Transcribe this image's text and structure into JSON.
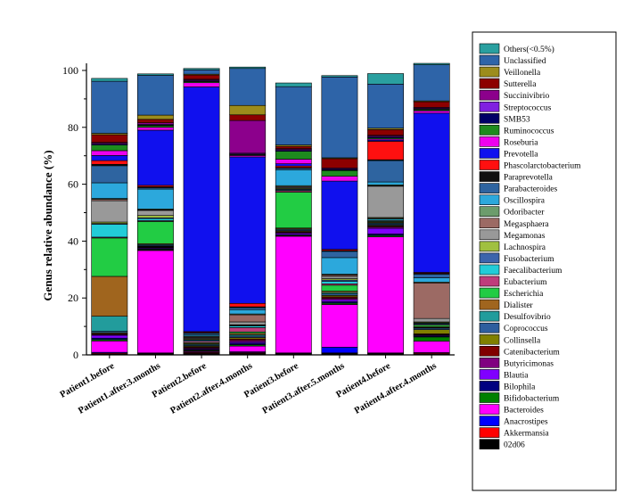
{
  "chart_data": {
    "type": "bar",
    "stacked": true,
    "title": "",
    "xlabel": "",
    "ylabel": "Genus relative abundance (%)",
    "ylim": [
      0,
      100
    ],
    "yticks": [
      0,
      20,
      40,
      60,
      80,
      100
    ],
    "legend_placement": "right",
    "grid": false,
    "categories": [
      "Patient1.before",
      "Patient1.after.3.months",
      "Patient2.before",
      "Patient2.after.4.months",
      "Patient3.before",
      "Patient3.after.5.months",
      "Patient4.before",
      "Patient4.after.4.months"
    ],
    "tick_labels": [
      "Patient1.before",
      "Patient1.after.3.months",
      "Patient2.before",
      "Patient2.after.4.months",
      "Patient3.before",
      "Patient3.after.5.months",
      "Patient4.before",
      "Patient4.after.4.months"
    ],
    "legend_entries": [
      "Others(<0.5%)",
      "Unclassified",
      "Veillonella",
      "Sutterella",
      "Succinivibrio",
      "Streptococcus",
      "SMB53",
      "Ruminococcus",
      "Roseburia",
      "Prevotella",
      "Phascolarctobacterium",
      "Paraprevotella",
      "Parabacteroides",
      "Oscillospira",
      "Odoribacter",
      "Megasphaera",
      "Megamonas",
      "Lachnospira",
      "Fusobacterium",
      "Faecalibacterium",
      "Eubacterium",
      "Escherichia",
      "Dialister",
      "Desulfovibrio",
      "Coprococcus",
      "Collinsella",
      "Catenibacterium",
      "Butyricimonas",
      "Blautia",
      "Bilophila",
      "Bifidobacterium",
      "Bacteroides",
      "Anacrostipes",
      "Akkermansia",
      "02d06"
    ],
    "series": [
      {
        "name": "02d06",
        "color": "#000000",
        "values": [
          0.3,
          0.3,
          0.5,
          0.5,
          0.3,
          0.5,
          0.3,
          0.3
        ]
      },
      {
        "name": "Akkermansia",
        "color": "#ff0000",
        "values": [
          0.3,
          0.2,
          0.3,
          0.3,
          0.2,
          0.2,
          0.2,
          0.3
        ]
      },
      {
        "name": "Anacrostipes",
        "color": "#0000ff",
        "values": [
          0.3,
          0.2,
          0.2,
          0.3,
          0.2,
          2.0,
          0.2,
          0.2
        ]
      },
      {
        "name": "Bacteroides",
        "color": "#ff00ff",
        "values": [
          4.0,
          36.0,
          0.3,
          2.0,
          41.0,
          15.0,
          40.8,
          4.0
        ]
      },
      {
        "name": "Bifidobacterium",
        "color": "#008000",
        "values": [
          0.5,
          0.3,
          0.3,
          0.5,
          0.3,
          0.5,
          0.5,
          1.5
        ]
      },
      {
        "name": "Bilophila",
        "color": "#000080",
        "values": [
          0.5,
          0.3,
          0.3,
          0.5,
          0.3,
          0.5,
          0.5,
          0.3
        ]
      },
      {
        "name": "Blautia",
        "color": "#8000ff",
        "values": [
          1.0,
          0.3,
          0.3,
          0.5,
          0.5,
          0.7,
          2.0,
          0.3
        ]
      },
      {
        "name": "Butyricimonas",
        "color": "#800080",
        "values": [
          0.3,
          0.2,
          0.3,
          0.5,
          0.3,
          0.5,
          0.5,
          0.2
        ]
      },
      {
        "name": "Catenibacterium",
        "color": "#800000",
        "values": [
          0.3,
          0.2,
          0.3,
          0.5,
          0.3,
          0.5,
          0.3,
          0.3
        ]
      },
      {
        "name": "Collinsella",
        "color": "#808000",
        "values": [
          0.3,
          0.2,
          0.3,
          0.5,
          0.3,
          0.5,
          0.3,
          1.5
        ]
      },
      {
        "name": "Coprococcus",
        "color": "#2e5e9e",
        "values": [
          0.5,
          0.3,
          0.3,
          0.5,
          0.3,
          0.5,
          0.4,
          0.5
        ]
      },
      {
        "name": "Desulfovibrio",
        "color": "#229c9c",
        "values": [
          5.3,
          0.3,
          0.3,
          0.5,
          0.3,
          0.5,
          0.3,
          0.2
        ]
      },
      {
        "name": "Dialister",
        "color": "#a0651e",
        "values": [
          14.0,
          0.3,
          0.3,
          0.5,
          0.3,
          0.5,
          0.3,
          0.3
        ]
      },
      {
        "name": "Escherichia",
        "color": "#22cc44",
        "values": [
          13.5,
          7.8,
          0.3,
          0.5,
          12.6,
          2.1,
          0.3,
          0.6
        ]
      },
      {
        "name": "Eubacterium",
        "color": "#c03c7c",
        "values": [
          0.3,
          0.3,
          0.5,
          1.5,
          0.5,
          0.5,
          0.3,
          0.3
        ]
      },
      {
        "name": "Faecalibacterium",
        "color": "#22ccd8",
        "values": [
          4.5,
          0.7,
          0.3,
          0.6,
          0.3,
          0.8,
          0.5,
          0.3
        ]
      },
      {
        "name": "Fusobacterium",
        "color": "#3c64ac",
        "values": [
          0.3,
          0.3,
          0.3,
          0.2,
          0.3,
          0.5,
          0.3,
          0.2
        ]
      },
      {
        "name": "Lachnospira",
        "color": "#a0c040",
        "values": [
          0.5,
          0.8,
          0.3,
          0.2,
          0.3,
          0.5,
          0.3,
          0.3
        ]
      },
      {
        "name": "Megamonas",
        "color": "#999999",
        "values": [
          7.5,
          1.8,
          0.3,
          1.0,
          0.3,
          0.8,
          11.0,
          1.2
        ]
      },
      {
        "name": "Megasphaera",
        "color": "#9c6a64",
        "values": [
          0.5,
          0.2,
          0.3,
          2.5,
          0.3,
          0.5,
          0.2,
          12.5
        ]
      },
      {
        "name": "Odoribacter",
        "color": "#6c9c6c",
        "values": [
          0.3,
          0.3,
          0.3,
          0.3,
          0.3,
          0.3,
          0.3,
          0.3
        ]
      },
      {
        "name": "Oscillospira",
        "color": "#2ca8dc",
        "values": [
          5.5,
          7.0,
          0.5,
          1.5,
          5.6,
          5.8,
          1.0,
          1.5
        ]
      },
      {
        "name": "Parabacteroides",
        "color": "#2e64a0",
        "values": [
          6.0,
          0.5,
          0.5,
          0.7,
          0.5,
          2.2,
          7.5,
          1.3
        ]
      },
      {
        "name": "Paraprevotella",
        "color": "#111111",
        "values": [
          0.5,
          0.3,
          0.3,
          0.3,
          0.3,
          0.3,
          0.3,
          0.3
        ]
      },
      {
        "name": "Phascolarctobacterium",
        "color": "#ff1010",
        "values": [
          1.3,
          0.5,
          0.3,
          1.2,
          0.5,
          0.4,
          6.5,
          0.3
        ]
      },
      {
        "name": "Prevotella",
        "color": "#1010ee",
        "values": [
          1.8,
          19.4,
          86.0,
          51.5,
          0.8,
          24.0,
          0.4,
          56.0
        ]
      },
      {
        "name": "Roseburia",
        "color": "#ee00ee",
        "values": [
          1.7,
          1.0,
          1.5,
          0.5,
          1.6,
          1.7,
          0.4,
          0.8
        ]
      },
      {
        "name": "Ruminococcus",
        "color": "#1e8a1e",
        "values": [
          2.0,
          0.6,
          0.4,
          0.3,
          2.8,
          2.0,
          0.4,
          0.4
        ]
      },
      {
        "name": "SMB53",
        "color": "#000066",
        "values": [
          0.3,
          0.2,
          0.2,
          0.2,
          0.3,
          0.3,
          0.3,
          0.2
        ]
      },
      {
        "name": "Streptococcus",
        "color": "#8020e0",
        "values": [
          0.3,
          0.3,
          0.3,
          0.3,
          0.3,
          0.3,
          0.3,
          0.3
        ]
      },
      {
        "name": "Succinivibrio",
        "color": "#8c008c",
        "values": [
          0.3,
          0.5,
          0.3,
          11.5,
          0.3,
          0.3,
          0.3,
          0.3
        ]
      },
      {
        "name": "Sutterella",
        "color": "#8c0000",
        "values": [
          2.7,
          1.2,
          1.5,
          2.0,
          0.8,
          3.3,
          2.0,
          2.0
        ]
      },
      {
        "name": "Veillonella",
        "color": "#9c8c1c",
        "values": [
          0.5,
          1.5,
          0.3,
          3.3,
          0.5,
          0.3,
          0.5,
          0.3
        ]
      },
      {
        "name": "Unclassified",
        "color": "#2e64a8",
        "values": [
          18.3,
          14.0,
          1.5,
          13.0,
          20.5,
          28.4,
          15.5,
          12.7
        ]
      },
      {
        "name": "Others(<0.5%)",
        "color": "#2aa0a0",
        "values": [
          1.0,
          0.5,
          0.5,
          0.5,
          1.3,
          0.5,
          3.7,
          0.5
        ]
      }
    ]
  }
}
